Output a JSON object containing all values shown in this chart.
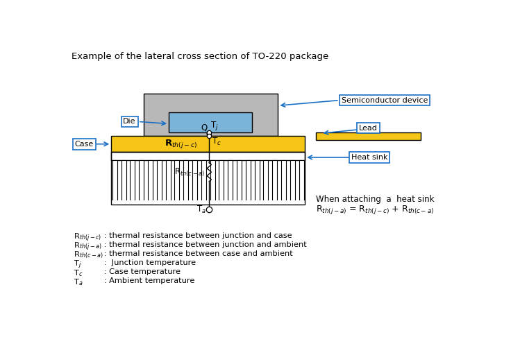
{
  "title": "Example of the lateral cross section of TO-220 package",
  "bg_color": "#ffffff",
  "colors": {
    "light_gray": "#b8b8b8",
    "yellow": "#f5c518",
    "blue_die": "#7bb4d8",
    "outline": "#000000",
    "blue_arrow": "#1a6fc4",
    "box_border": "#1a6fc4"
  },
  "legend_lines": [
    [
      "R$_{th(j-c)}$",
      " : thermal resistance between junction and case"
    ],
    [
      "R$_{th(j-a)}$",
      " : thermal resistance between junction and ambient"
    ],
    [
      "R$_{th(c-a)}$",
      " : thermal resistance between case and ambient"
    ],
    [
      "T$_j$",
      " :  Junction temperature"
    ],
    [
      "T$_c$",
      " : Case temperature"
    ],
    [
      "T$_a$",
      " : Ambient temperature"
    ]
  ]
}
